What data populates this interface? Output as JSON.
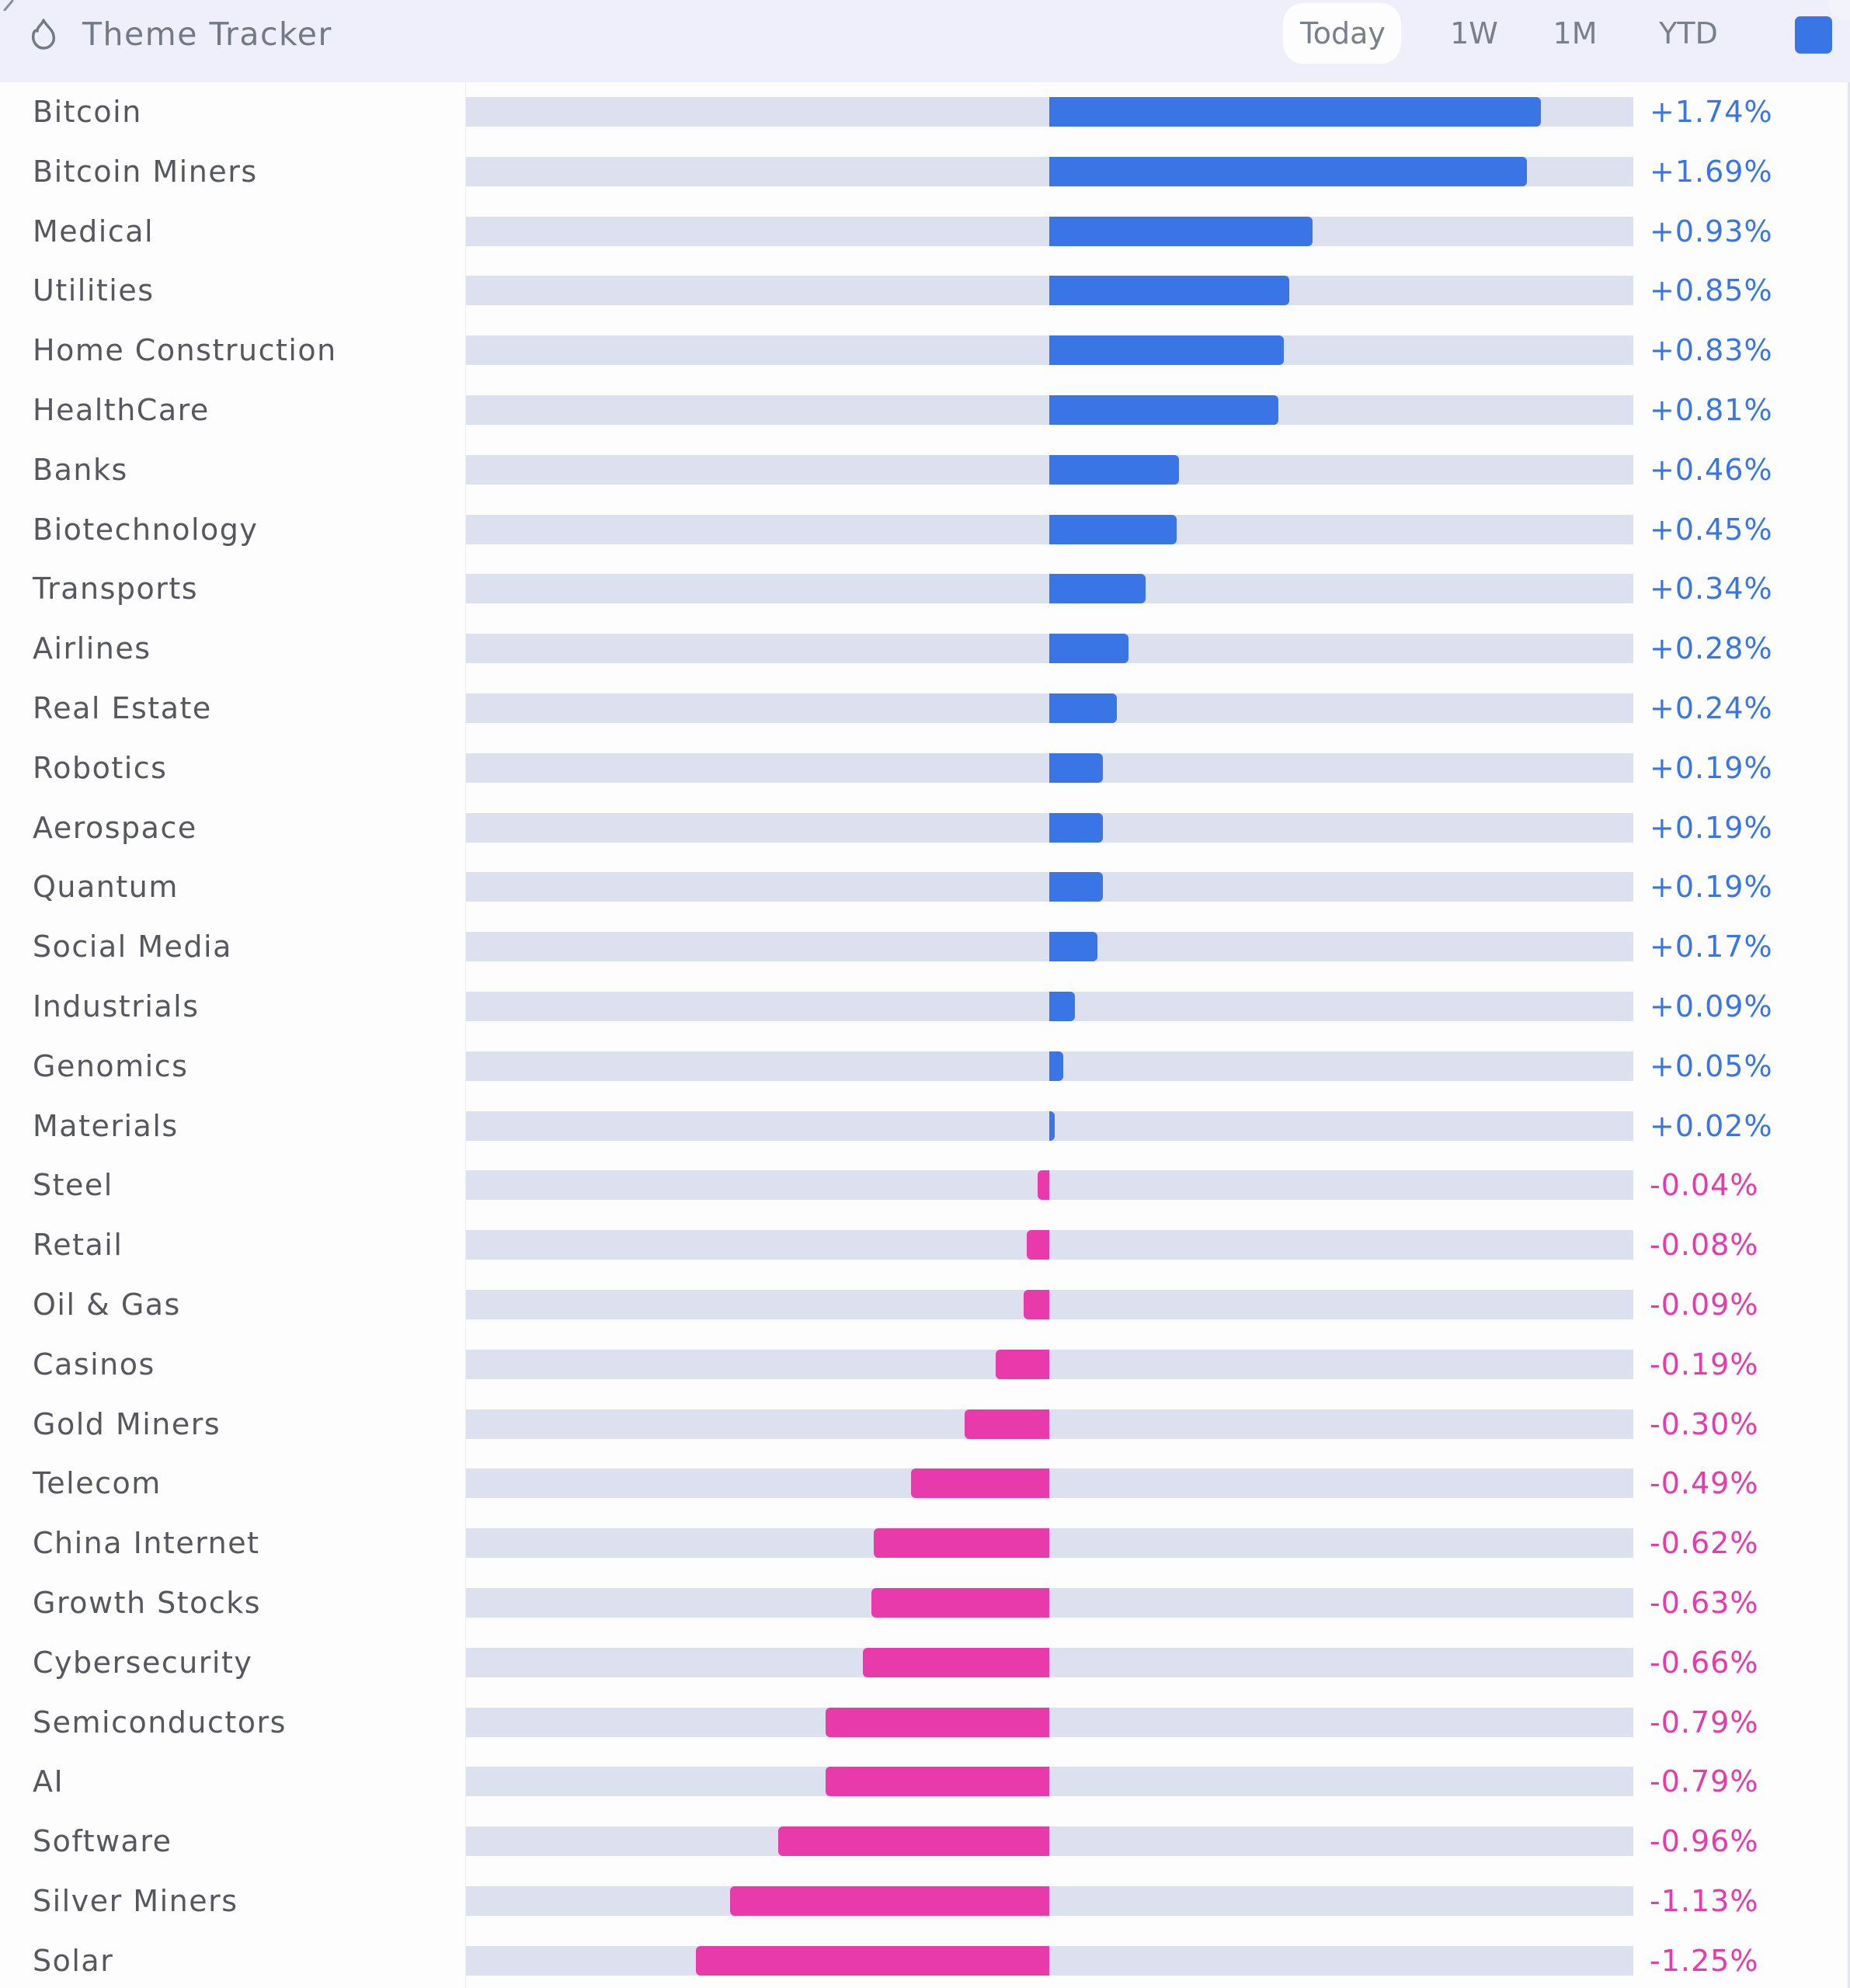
{
  "header": {
    "title": "Theme Tracker",
    "icon": "flame-icon",
    "tabs": [
      {
        "label": "Today",
        "active": true
      },
      {
        "label": "1W",
        "active": false
      },
      {
        "label": "1M",
        "active": false
      },
      {
        "label": "YTD",
        "active": false
      }
    ],
    "swatch_color": "#3a75e6"
  },
  "colors": {
    "positive": "#3a75e6",
    "negative": "#e83aab",
    "track": "#dde0ef"
  },
  "chart_data": {
    "type": "bar",
    "orientation": "horizontal",
    "title": "Theme Tracker",
    "period": "Today",
    "unit": "%",
    "xlim": [
      -2.06,
      2.06
    ],
    "categories": [
      "Bitcoin",
      "Bitcoin Miners",
      "Medical",
      "Utilities",
      "Home Construction",
      "HealthCare",
      "Banks",
      "Biotechnology",
      "Transports",
      "Airlines",
      "Real Estate",
      "Robotics",
      "Aerospace",
      "Quantum",
      "Social Media",
      "Industrials",
      "Genomics",
      "Materials",
      "Steel",
      "Retail",
      "Oil & Gas",
      "Casinos",
      "Gold Miners",
      "Telecom",
      "China Internet",
      "Growth Stocks",
      "Cybersecurity",
      "Semiconductors",
      "AI",
      "Software",
      "Silver Miners",
      "Solar"
    ],
    "values": [
      1.74,
      1.69,
      0.93,
      0.85,
      0.83,
      0.81,
      0.46,
      0.45,
      0.34,
      0.28,
      0.24,
      0.19,
      0.19,
      0.19,
      0.17,
      0.09,
      0.05,
      0.02,
      -0.04,
      -0.08,
      -0.09,
      -0.19,
      -0.3,
      -0.49,
      -0.62,
      -0.63,
      -0.66,
      -0.79,
      -0.79,
      -0.96,
      -1.13,
      -1.25
    ],
    "value_labels": [
      "+1.74%",
      "+1.69%",
      "+0.93%",
      "+0.85%",
      "+0.83%",
      "+0.81%",
      "+0.46%",
      "+0.45%",
      "+0.34%",
      "+0.28%",
      "+0.24%",
      "+0.19%",
      "+0.19%",
      "+0.19%",
      "+0.17%",
      "+0.09%",
      "+0.05%",
      "+0.02%",
      "-0.04%",
      "-0.08%",
      "-0.09%",
      "-0.19%",
      "-0.30%",
      "-0.49%",
      "-0.62%",
      "-0.63%",
      "-0.66%",
      "-0.79%",
      "-0.79%",
      "-0.96%",
      "-1.13%",
      "-1.25%"
    ]
  }
}
